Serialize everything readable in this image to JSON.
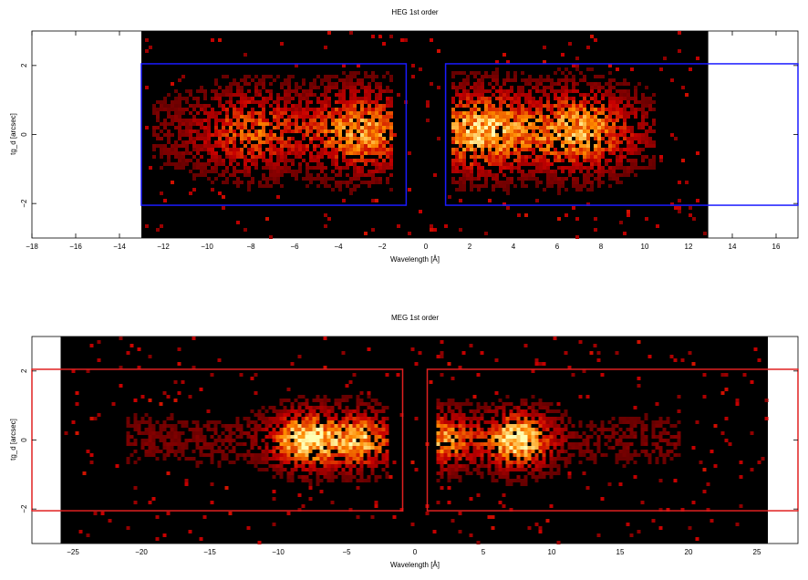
{
  "chart_data": [
    {
      "type": "heatmap",
      "title": "HEG 1st order",
      "xlabel": "Wavelength [Å]",
      "ylabel": "tg_d [arcsec]",
      "xlim": [
        -18,
        17
      ],
      "ylim": [
        -3,
        3
      ],
      "xticks": [
        -18,
        -16,
        -14,
        -12,
        -10,
        -8,
        -6,
        -4,
        -2,
        0,
        2,
        4,
        6,
        8,
        10,
        12,
        14,
        16
      ],
      "yticks": [
        -2,
        0,
        2
      ],
      "exposure_range_x": [
        -13,
        12.9
      ],
      "source_band_y": [
        -0.9,
        1.1
      ],
      "region_color": "#1a1aff",
      "regions": [
        {
          "x": [
            -13,
            -0.9
          ],
          "y": [
            -2.05,
            2.05
          ]
        },
        {
          "x": [
            0.9,
            18
          ],
          "y": [
            -2.05,
            2.05
          ]
        }
      ],
      "emission_peaks": [
        {
          "x": -8,
          "intensity": 0.5
        },
        {
          "x": -3,
          "intensity": 0.7
        },
        {
          "x": 2.5,
          "intensity": 0.85
        },
        {
          "x": 7,
          "intensity": 0.75
        }
      ],
      "emission_extent": [
        [
          -12.5,
          -1.5
        ],
        [
          1.2,
          10.5
        ]
      ]
    },
    {
      "type": "heatmap",
      "title": "MEG 1st order",
      "xlabel": "Wavelength [Å]",
      "ylabel": "tg_d [arcsec]",
      "xlim": [
        -28,
        28
      ],
      "ylim": [
        -3,
        3
      ],
      "xticks": [
        -25,
        -20,
        -15,
        -10,
        -5,
        0,
        5,
        10,
        15,
        20,
        25
      ],
      "yticks": [
        -2,
        0,
        2
      ],
      "exposure_range_x": [
        -25.9,
        25.8
      ],
      "source_band_y": [
        -0.7,
        0.7
      ],
      "region_color": "#e02020",
      "regions": [
        {
          "x": [
            -30,
            -0.9
          ],
          "y": [
            -2.05,
            2.05
          ]
        },
        {
          "x": [
            0.9,
            30
          ],
          "y": [
            -2.05,
            2.05
          ]
        }
      ],
      "emission_peaks": [
        {
          "x": -8,
          "intensity": 1.0
        },
        {
          "x": -4,
          "intensity": 0.8
        },
        {
          "x": 2,
          "intensity": 0.7
        },
        {
          "x": 7.5,
          "intensity": 1.0
        }
      ],
      "emission_extent": [
        [
          -21,
          -2
        ],
        [
          1.5,
          19.5
        ]
      ]
    }
  ]
}
